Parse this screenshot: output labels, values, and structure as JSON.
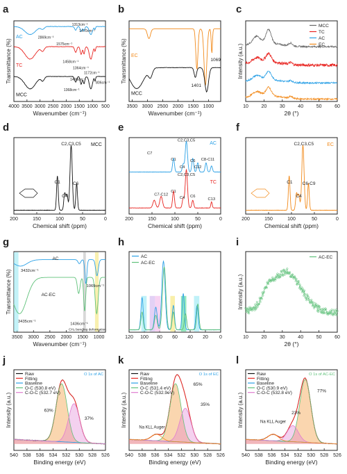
{
  "colors": {
    "axis": "#222222",
    "black": "#111111",
    "red": "#e8231f",
    "blue": "#2aa0e6",
    "orange": "#f28a1a",
    "green": "#5fc17a",
    "teal": "#1fa98f",
    "grey": "#666666",
    "pink": "#e07bd0",
    "cyan_band": "#a9ecf5",
    "yellow_band": "#f7e98d",
    "grey_band": "#c8c8c8",
    "pink_band": "#f4c4ee",
    "violet_band": "#d9c2f2",
    "green_band": "#6fe0a8"
  },
  "chart_data": [
    {
      "panel": "a",
      "type": "line",
      "xlabel": "Wavenumber (cm⁻¹)",
      "ylabel": "Transmittance (%)",
      "xlim": [
        4000,
        500
      ],
      "xticks": [
        4000,
        3500,
        3000,
        2500,
        2000,
        1500,
        1000,
        500
      ],
      "series": [
        {
          "name": "AC",
          "color": "blue",
          "offset": 0.8
        },
        {
          "name": "TC",
          "color": "red",
          "offset": 0.45
        },
        {
          "name": "MCC",
          "color": "black",
          "offset": 0.08
        }
      ],
      "annotations": [
        "1313cm⁻¹",
        "1470cm⁻¹",
        "2869cm⁻¹",
        "1575cm⁻¹",
        "1458cm⁻¹",
        "1364cm⁻¹",
        "1172cm⁻¹",
        "1498cm⁻¹",
        "806cm⁻¹",
        "1368cm⁻¹"
      ]
    },
    {
      "panel": "b",
      "type": "line",
      "xlabel": "Wavenumber (cm⁻¹)",
      "ylabel": "Transmittance (%)",
      "xlim": [
        3600,
        600
      ],
      "xticks": [
        3500,
        3000,
        2500,
        2000,
        1500,
        1000
      ],
      "series": [
        {
          "name": "EC",
          "color": "orange",
          "offset": 0.5
        },
        {
          "name": "MCC",
          "color": "black",
          "offset": 0.05
        }
      ],
      "annotations": [
        "1069",
        "1401"
      ]
    },
    {
      "panel": "c",
      "type": "line",
      "xlabel": "2θ (°)",
      "ylabel": "Intensity (a.u.)",
      "xlim": [
        10,
        60
      ],
      "xticks": [
        10,
        20,
        30,
        40,
        50,
        60
      ],
      "legend": "top-right",
      "series": [
        {
          "name": "MCC",
          "color": "grey"
        },
        {
          "name": "TC",
          "color": "red"
        },
        {
          "name": "AC",
          "color": "blue"
        },
        {
          "name": "EC",
          "color": "orange"
        }
      ]
    },
    {
      "panel": "d",
      "type": "line",
      "xlabel": "Chemical shift (ppm)",
      "xlim": [
        200,
        0
      ],
      "xticks": [
        200,
        150,
        100,
        50,
        0
      ],
      "label": "MCC",
      "peaks": [
        {
          "x": 105,
          "label": "C1"
        },
        {
          "x": 89,
          "label": "C4"
        },
        {
          "x": 75,
          "label": "C2,C3,C5"
        },
        {
          "x": 65,
          "label": "C6"
        }
      ]
    },
    {
      "panel": "e",
      "type": "line",
      "xlabel": "Chemical shift (ppm)",
      "xlim": [
        200,
        0
      ],
      "xticks": [
        200,
        150,
        100,
        50,
        0
      ],
      "series": [
        {
          "name": "AC",
          "color": "blue"
        },
        {
          "name": "TC",
          "color": "red"
        }
      ],
      "peak_labels_ac": [
        "C2,C3,C5",
        "C1",
        "C4",
        "C6",
        "C12",
        "C8-C11",
        "C7"
      ],
      "peak_labels_tc": [
        "C2,C3,C5",
        "C7-C12",
        "C1",
        "C4",
        "C6",
        "C13"
      ]
    },
    {
      "panel": "f",
      "type": "line",
      "xlabel": "Chemical shift (ppm)",
      "xlim": [
        200,
        0
      ],
      "xticks": [
        200,
        150,
        100,
        50,
        0
      ],
      "label": "EC",
      "peaks": [
        {
          "x": 104,
          "label": "C1"
        },
        {
          "x": 84,
          "label": "C4"
        },
        {
          "x": 73,
          "label": "C2,C3,C5"
        },
        {
          "x": 62,
          "label": "C6-C9"
        }
      ]
    },
    {
      "panel": "g",
      "type": "line",
      "xlabel": "Wavenumber (cm⁻¹)",
      "ylabel": "Transmittance (%)",
      "xlim": [
        3600,
        800
      ],
      "xticks": [
        3500,
        3000,
        2500,
        2000,
        1500,
        1000
      ],
      "series": [
        {
          "name": "AC",
          "color": "blue"
        },
        {
          "name": "AC-EC",
          "color": "green"
        }
      ],
      "annotations": [
        "3432cm⁻¹",
        "3435cm⁻¹",
        "1436cm⁻¹",
        "CH₂ bending deformation",
        "1069cm⁻¹"
      ]
    },
    {
      "panel": "h",
      "type": "line",
      "xlim": [
        120,
        0
      ],
      "xticks": [
        120,
        100,
        80,
        60,
        40,
        20,
        0
      ],
      "legend": "top-left",
      "series": [
        {
          "name": "AC",
          "color": "blue"
        },
        {
          "name": "AC-EC",
          "color": "green"
        }
      ]
    },
    {
      "panel": "i",
      "type": "scatter",
      "xlabel": "2θ (°)",
      "ylabel": "Intensity (a.u.)",
      "xlim": [
        10,
        60
      ],
      "xticks": [
        10,
        20,
        30,
        40,
        50,
        60
      ],
      "legend": "top-right",
      "series": [
        {
          "name": "AC-EC",
          "color": "green"
        }
      ]
    },
    {
      "panel": "j",
      "type": "line",
      "xlabel": "Binding energy (eV)",
      "ylabel": "Intensity (a.u.)",
      "xlim": [
        540,
        526
      ],
      "xticks": [
        540,
        538,
        536,
        534,
        532,
        530,
        528,
        526
      ],
      "title": "O 1s of AC",
      "legend": [
        "Raw",
        "Fitting",
        "Baseline",
        "O-C (530.8 eV)",
        "C-O-C (532.7 eV)"
      ],
      "fractions": [
        "63%",
        "37%"
      ]
    },
    {
      "panel": "k",
      "type": "line",
      "xlabel": "Binding energy (eV)",
      "ylabel": "Intensity (a.u.)",
      "xlim": [
        540,
        526
      ],
      "xticks": [
        540,
        538,
        536,
        534,
        532,
        530,
        528,
        526
      ],
      "title": "O 1s of EC",
      "legend": [
        "Raw",
        "Fitting",
        "Baseline",
        "O-C (531.4 eV)",
        "C-O-C (532.9eV)"
      ],
      "fractions": [
        "65%",
        "35%"
      ],
      "extra_label": "Na KLL Auger"
    },
    {
      "panel": "l",
      "type": "line",
      "xlabel": "Binding energy (eV)",
      "ylabel": "Intensity (a.u.)",
      "xlim": [
        540,
        526
      ],
      "xticks": [
        540,
        538,
        536,
        534,
        532,
        530,
        528,
        526
      ],
      "title": "O 1s of AC-EC",
      "legend": [
        "Raw",
        "Fitting",
        "Baseline",
        "O-C (530.9 eV)",
        "C-O-C (532.8 eV)"
      ],
      "fractions": [
        "77%",
        "23%"
      ],
      "extra_label": "Na KLL Auger"
    }
  ]
}
